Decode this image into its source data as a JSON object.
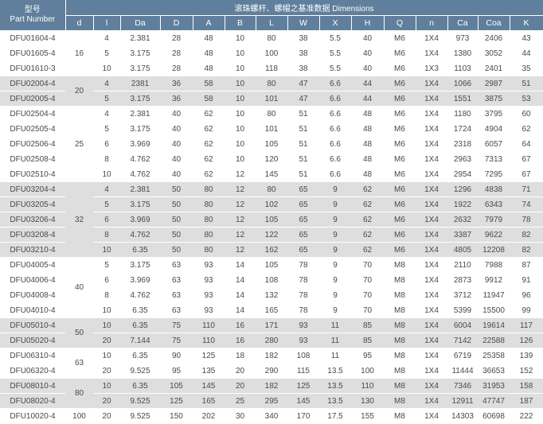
{
  "header": {
    "part_label_cn": "型号",
    "part_label_en": "Part Number",
    "group_title": "滚珠螺杆、螺帽之基准数据 Dimensions",
    "columns": [
      "d",
      "l",
      "Da",
      "D",
      "A",
      "B",
      "L",
      "W",
      "X",
      "H",
      "Q",
      "n",
      "Ca",
      "Coa",
      "K"
    ]
  },
  "groups": [
    {
      "d": "16",
      "shaded": false,
      "rows": [
        [
          "DFU01604-4",
          "4",
          "2.381",
          "28",
          "48",
          "10",
          "80",
          "38",
          "5.5",
          "40",
          "M6",
          "1X4",
          "973",
          "2406",
          "43"
        ],
        [
          "DFU01605-4",
          "5",
          "3.175",
          "28",
          "48",
          "10",
          "100",
          "38",
          "5.5",
          "40",
          "M6",
          "1X4",
          "1380",
          "3052",
          "44"
        ],
        [
          "DFU01610-3",
          "10",
          "3.175",
          "28",
          "48",
          "10",
          "118",
          "38",
          "5.5",
          "40",
          "M6",
          "1X3",
          "1103",
          "2401",
          "35"
        ]
      ]
    },
    {
      "d": "20",
      "shaded": true,
      "rows": [
        [
          "DFU02004-4",
          "4",
          "2381",
          "36",
          "58",
          "10",
          "80",
          "47",
          "6.6",
          "44",
          "M6",
          "1X4",
          "1066",
          "2987",
          "51"
        ],
        [
          "DFU02005-4",
          "5",
          "3.175",
          "36",
          "58",
          "10",
          "101",
          "47",
          "6.6",
          "44",
          "M6",
          "1X4",
          "1551",
          "3875",
          "53"
        ]
      ]
    },
    {
      "d": "25",
      "shaded": false,
      "rows": [
        [
          "DFU02504-4",
          "4",
          "2.381",
          "40",
          "62",
          "10",
          "80",
          "51",
          "6.6",
          "48",
          "M6",
          "1X4",
          "1180",
          "3795",
          "60"
        ],
        [
          "DFU02505-4",
          "5",
          "3.175",
          "40",
          "62",
          "10",
          "101",
          "51",
          "6.6",
          "48",
          "M6",
          "1X4",
          "1724",
          "4904",
          "62"
        ],
        [
          "DFU02506-4",
          "6",
          "3.969",
          "40",
          "62",
          "10",
          "105",
          "51",
          "6.6",
          "48",
          "M6",
          "1X4",
          "2318",
          "6057",
          "64"
        ],
        [
          "DFU02508-4",
          "8",
          "4.762",
          "40",
          "62",
          "10",
          "120",
          "51",
          "6.6",
          "48",
          "M6",
          "1X4",
          "2963",
          "7313",
          "67"
        ],
        [
          "DFU02510-4",
          "10",
          "4.762",
          "40",
          "62",
          "12",
          "145",
          "51",
          "6.6",
          "48",
          "M6",
          "1X4",
          "2954",
          "7295",
          "67"
        ]
      ]
    },
    {
      "d": "32",
      "shaded": true,
      "rows": [
        [
          "DFU03204-4",
          "4",
          "2.381",
          "50",
          "80",
          "12",
          "80",
          "65",
          "9",
          "62",
          "M6",
          "1X4",
          "1296",
          "4838",
          "71"
        ],
        [
          "DFU03205-4",
          "5",
          "3.175",
          "50",
          "80",
          "12",
          "102",
          "65",
          "9",
          "62",
          "M6",
          "1X4",
          "1922",
          "6343",
          "74"
        ],
        [
          "DFU03206-4",
          "6",
          "3.969",
          "50",
          "80",
          "12",
          "105",
          "65",
          "9",
          "62",
          "M6",
          "1X4",
          "2632",
          "7979",
          "78"
        ],
        [
          "DFU03208-4",
          "8",
          "4.762",
          "50",
          "80",
          "12",
          "122",
          "65",
          "9",
          "62",
          "M6",
          "1X4",
          "3387",
          "9622",
          "82"
        ],
        [
          "DFU03210-4",
          "10",
          "6.35",
          "50",
          "80",
          "12",
          "162",
          "65",
          "9",
          "62",
          "M6",
          "1X4",
          "4805",
          "12208",
          "82"
        ]
      ]
    },
    {
      "d": "40",
      "shaded": false,
      "rows": [
        [
          "DFU04005-4",
          "5",
          "3.175",
          "63",
          "93",
          "14",
          "105",
          "78",
          "9",
          "70",
          "M8",
          "1X4",
          "2110",
          "7988",
          "87"
        ],
        [
          "DFU04006-4",
          "6",
          "3.969",
          "63",
          "93",
          "14",
          "108",
          "78",
          "9",
          "70",
          "M8",
          "1X4",
          "2873",
          "9912",
          "91"
        ],
        [
          "DFU04008-4",
          "8",
          "4.762",
          "63",
          "93",
          "14",
          "132",
          "78",
          "9",
          "70",
          "M8",
          "1X4",
          "3712",
          "11947",
          "96"
        ],
        [
          "DFU04010-4",
          "10",
          "6.35",
          "63",
          "93",
          "14",
          "165",
          "78",
          "9",
          "70",
          "M8",
          "1X4",
          "5399",
          "15500",
          "99"
        ]
      ]
    },
    {
      "d": "50",
      "shaded": true,
      "rows": [
        [
          "DFU05010-4",
          "10",
          "6.35",
          "75",
          "110",
          "16",
          "171",
          "93",
          "11",
          "85",
          "M8",
          "1X4",
          "6004",
          "19614",
          "117"
        ],
        [
          "DFU05020-4",
          "20",
          "7.144",
          "75",
          "110",
          "16",
          "280",
          "93",
          "11",
          "85",
          "M8",
          "1X4",
          "7142",
          "22588",
          "126"
        ]
      ]
    },
    {
      "d": "63",
      "shaded": false,
      "rows": [
        [
          "DFU06310-4",
          "10",
          "6.35",
          "90",
          "125",
          "18",
          "182",
          "108",
          "11",
          "95",
          "M8",
          "1X4",
          "6719",
          "25358",
          "139"
        ],
        [
          "DFU06320-4",
          "20",
          "9.525",
          "95",
          "135",
          "20",
          "290",
          "115",
          "13.5",
          "100",
          "M8",
          "1X4",
          "11444",
          "36653",
          "152"
        ]
      ]
    },
    {
      "d": "80",
      "shaded": true,
      "rows": [
        [
          "DFU08010-4",
          "10",
          "6.35",
          "105",
          "145",
          "20",
          "182",
          "125",
          "13.5",
          "110",
          "M8",
          "1X4",
          "7346",
          "31953",
          "158"
        ],
        [
          "DFU08020-4",
          "20",
          "9.525",
          "125",
          "165",
          "25",
          "295",
          "145",
          "13.5",
          "130",
          "M8",
          "1X4",
          "12911",
          "47747",
          "187"
        ]
      ]
    },
    {
      "d": "100",
      "shaded": false,
      "rows": [
        [
          "DFU10020-4",
          "20",
          "9.525",
          "150",
          "202",
          "30",
          "340",
          "170",
          "17.5",
          "155",
          "M8",
          "1X4",
          "14303",
          "60698",
          "222"
        ]
      ]
    }
  ]
}
